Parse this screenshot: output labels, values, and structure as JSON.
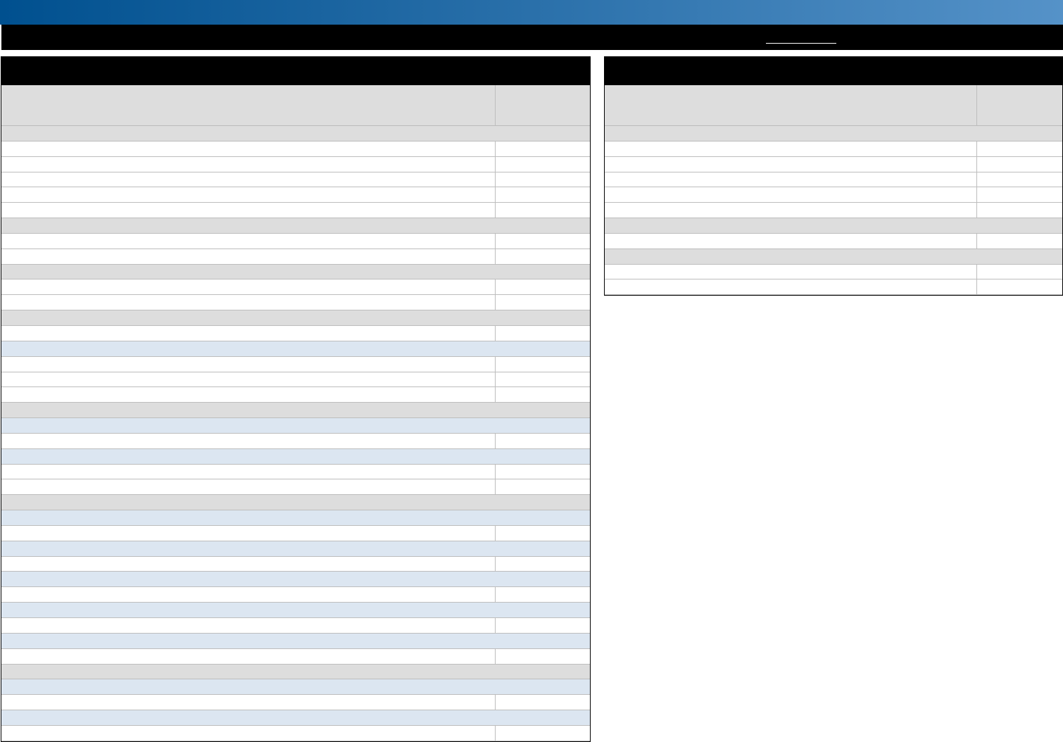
{
  "colors": {
    "banner_start": "#00508f",
    "banner_end": "#5592c8",
    "section": "#dddddd",
    "subsection": "#dce6f1",
    "title_bar": "#000000"
  },
  "topbar": {
    "link_label": ""
  },
  "left_table": {
    "title": "",
    "header": {
      "label": "",
      "value": ""
    },
    "rows": [
      {
        "type": "section",
        "label": ""
      },
      {
        "type": "item",
        "label": "",
        "value": ""
      },
      {
        "type": "item",
        "label": "",
        "value": ""
      },
      {
        "type": "item",
        "label": "",
        "value": ""
      },
      {
        "type": "item",
        "label": "",
        "value": ""
      },
      {
        "type": "item",
        "label": "",
        "value": ""
      },
      {
        "type": "section",
        "label": ""
      },
      {
        "type": "item",
        "label": "",
        "value": ""
      },
      {
        "type": "item",
        "label": "",
        "value": ""
      },
      {
        "type": "section",
        "label": ""
      },
      {
        "type": "item",
        "label": "",
        "value": ""
      },
      {
        "type": "item",
        "label": "",
        "value": ""
      },
      {
        "type": "section",
        "label": ""
      },
      {
        "type": "item",
        "label": "",
        "value": ""
      },
      {
        "type": "subsection",
        "label": ""
      },
      {
        "type": "item",
        "label": "",
        "value": ""
      },
      {
        "type": "item",
        "label": "",
        "value": ""
      },
      {
        "type": "item",
        "label": "",
        "value": ""
      },
      {
        "type": "section",
        "label": ""
      },
      {
        "type": "subsection",
        "label": ""
      },
      {
        "type": "item",
        "label": "",
        "value": ""
      },
      {
        "type": "subsection",
        "label": ""
      },
      {
        "type": "item",
        "label": "",
        "value": ""
      },
      {
        "type": "item",
        "label": "",
        "value": ""
      },
      {
        "type": "section",
        "label": ""
      },
      {
        "type": "subsection",
        "label": ""
      },
      {
        "type": "item",
        "label": "",
        "value": ""
      },
      {
        "type": "subsection",
        "label": ""
      },
      {
        "type": "item",
        "label": "",
        "value": ""
      },
      {
        "type": "subsection",
        "label": ""
      },
      {
        "type": "item",
        "label": "",
        "value": ""
      },
      {
        "type": "subsection",
        "label": ""
      },
      {
        "type": "item",
        "label": "",
        "value": ""
      },
      {
        "type": "subsection",
        "label": ""
      },
      {
        "type": "item",
        "label": "",
        "value": ""
      },
      {
        "type": "section",
        "label": ""
      },
      {
        "type": "subsection",
        "label": ""
      },
      {
        "type": "item",
        "label": "",
        "value": ""
      },
      {
        "type": "subsection",
        "label": ""
      },
      {
        "type": "item",
        "label": "",
        "value": ""
      }
    ]
  },
  "right_table": {
    "title": "",
    "header": {
      "label": "",
      "value": ""
    },
    "rows": [
      {
        "type": "section",
        "label": ""
      },
      {
        "type": "item",
        "label": "",
        "value": ""
      },
      {
        "type": "item",
        "label": "",
        "value": ""
      },
      {
        "type": "item",
        "label": "",
        "value": ""
      },
      {
        "type": "item",
        "label": "",
        "value": ""
      },
      {
        "type": "item",
        "label": "",
        "value": ""
      },
      {
        "type": "section",
        "label": ""
      },
      {
        "type": "item",
        "label": "",
        "value": ""
      },
      {
        "type": "section",
        "label": ""
      },
      {
        "type": "item",
        "label": "",
        "value": ""
      },
      {
        "type": "item",
        "label": "",
        "value": ""
      }
    ]
  }
}
